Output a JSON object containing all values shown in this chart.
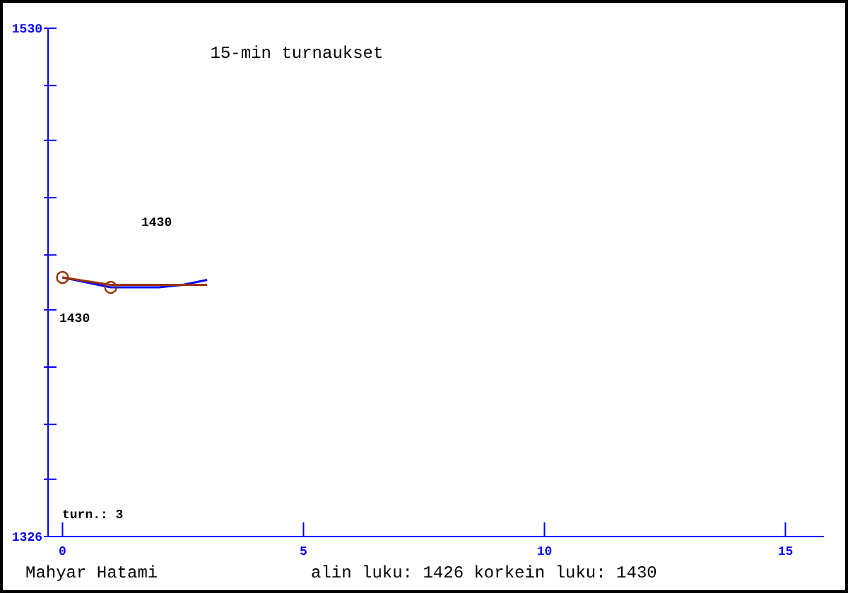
{
  "chart_data": {
    "type": "line",
    "title": "15-min turnaukset",
    "xlim": [
      -0.3,
      15.8
    ],
    "xticks": [
      0,
      5,
      10,
      15
    ],
    "ylim": [
      1326,
      1530
    ],
    "yticks": [
      1326,
      {
        "value": 1349,
        "label": null
      },
      {
        "value": 1371,
        "label": null
      },
      {
        "value": 1394,
        "label": null
      },
      {
        "value": 1417,
        "label": null
      },
      {
        "value": 1439,
        "label": null
      },
      {
        "value": 1462,
        "label": null
      },
      {
        "value": 1485,
        "label": null
      },
      {
        "value": 1507,
        "label": null
      },
      1530
    ],
    "series": [
      {
        "color": "#0000ff",
        "x": [
          0,
          0.5,
          1,
          1.5,
          2,
          2.5,
          3
        ],
        "values": [
          1430,
          1428,
          1426,
          1426,
          1426,
          1427,
          1429
        ]
      },
      {
        "color": "#993300",
        "x": [
          0,
          1,
          2,
          3
        ],
        "values": [
          1430,
          1427,
          1427,
          1427
        ]
      },
      {
        "type": "scatter",
        "color": "#993300",
        "marker": "circle",
        "x": [
          0,
          1
        ],
        "values": [
          1430,
          1426
        ]
      }
    ],
    "annotations": [
      "1430",
      "1430",
      "turn.: 3",
      "Mahyar Hatami",
      "alin luku: 1426  korkein luku: 1430"
    ]
  }
}
